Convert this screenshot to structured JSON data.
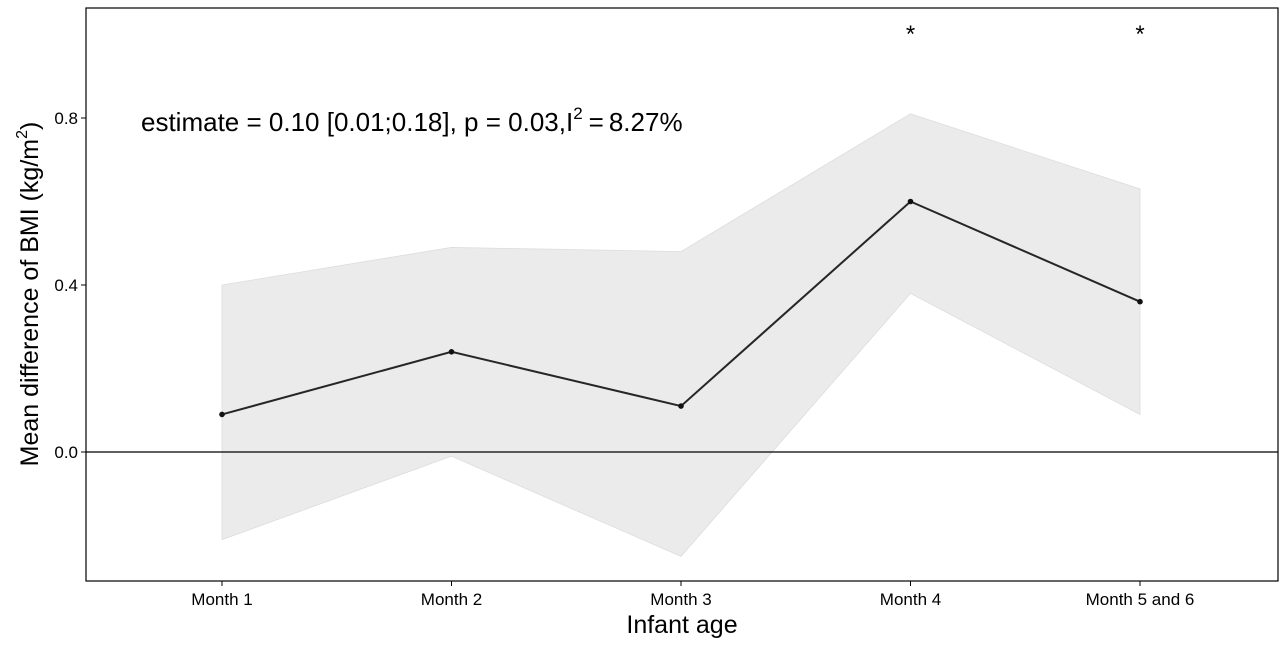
{
  "chart_data": {
    "type": "line",
    "title": "",
    "xlabel": "Infant age",
    "ylabel": {
      "main": "Mean difference of BMI (kg/m",
      "superscript": "2",
      "close": ")"
    },
    "categories": [
      "Month 1",
      "Month 2",
      "Month 3",
      "Month 4",
      "Month 5 and 6"
    ],
    "series": [
      {
        "values": [
          0.09,
          0.24,
          0.11,
          0.6,
          0.36
        ],
        "ci_lower": [
          -0.21,
          -0.01,
          -0.25,
          0.38,
          0.09
        ],
        "ci_upper": [
          0.4,
          0.49,
          0.48,
          0.81,
          0.63
        ]
      }
    ],
    "significance_markers": [
      "",
      "",
      "",
      "*",
      "*"
    ],
    "yticks": [
      "0.0",
      "0.4",
      "0.8"
    ],
    "ytick_values": [
      0.0,
      0.4,
      0.8
    ],
    "ylim": [
      -0.31,
      1.06
    ],
    "reference_line": 0,
    "annotation": {
      "prefix": "estimate = 0.10 [0.01;0.18], p = 0.03,I",
      "superscript": "2",
      "equals": "=",
      "suffix": "8.27%"
    },
    "grid": false,
    "legend": "none",
    "colors": {
      "line": "#262626",
      "ribbon": "#ebebeb",
      "axis": "#000000"
    }
  }
}
